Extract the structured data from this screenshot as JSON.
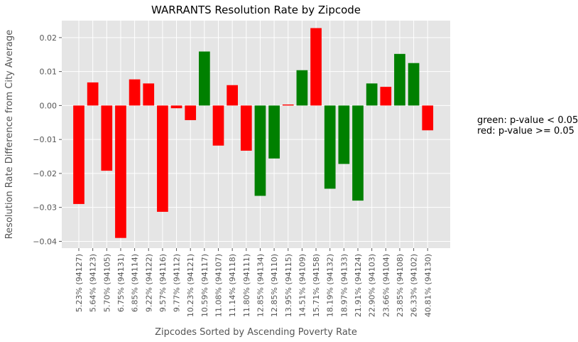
{
  "chart_data": {
    "type": "bar",
    "title": "WARRANTS Resolution Rate by Zipcode",
    "xlabel": "Zipcodes Sorted by Ascending Poverty Rate",
    "ylabel": "Resolution Rate Difference from City Average",
    "ylim": [
      -0.042,
      0.025
    ],
    "yticks": [
      -0.04,
      -0.03,
      -0.02,
      -0.01,
      0.0,
      0.01,
      0.02
    ],
    "ytick_labels": [
      "−0.04",
      "−0.03",
      "−0.02",
      "−0.01",
      "0.00",
      "0.01",
      "0.02"
    ],
    "grid": true,
    "categories": [
      "5.23%  (94127)",
      "5.64%  (94123)",
      "5.70%  (94105)",
      "6.75%  (94131)",
      "6.85%  (94114)",
      "9.22%  (94122)",
      "9.57%  (94116)",
      "9.77%  (94112)",
      "10.23%  (94121)",
      "10.59%  (94117)",
      "11.08%  (94107)",
      "11.14%  (94118)",
      "11.80%  (94111)",
      "12.85%  (94134)",
      "12.85%  (94110)",
      "13.95%  (94115)",
      "14.51%  (94109)",
      "15.71%  (94158)",
      "18.19%  (94132)",
      "18.97%  (94133)",
      "21.91%  (94124)",
      "22.90%  (94103)",
      "23.66%  (94104)",
      "23.85%  (94108)",
      "26.33%  (94102)",
      "40.81%  (94130)"
    ],
    "values": [
      -0.029,
      0.0068,
      -0.0192,
      -0.039,
      0.0077,
      0.0065,
      -0.0313,
      -0.0008,
      -0.0043,
      0.0159,
      -0.0118,
      0.006,
      -0.0133,
      -0.0266,
      -0.0156,
      0.0003,
      0.0104,
      0.0228,
      -0.0245,
      -0.0172,
      -0.028,
      0.0065,
      0.0055,
      0.0152,
      0.0125,
      -0.0073
    ],
    "significance": [
      "red",
      "red",
      "red",
      "red",
      "red",
      "red",
      "red",
      "red",
      "red",
      "green",
      "red",
      "red",
      "red",
      "green",
      "green",
      "red",
      "green",
      "red",
      "green",
      "green",
      "green",
      "green",
      "red",
      "green",
      "green",
      "red"
    ],
    "colors": {
      "green": "#008000",
      "red": "#ff0000"
    },
    "annotations": [
      "green: p-value < 0.05",
      "red: p-value >= 0.05"
    ]
  }
}
